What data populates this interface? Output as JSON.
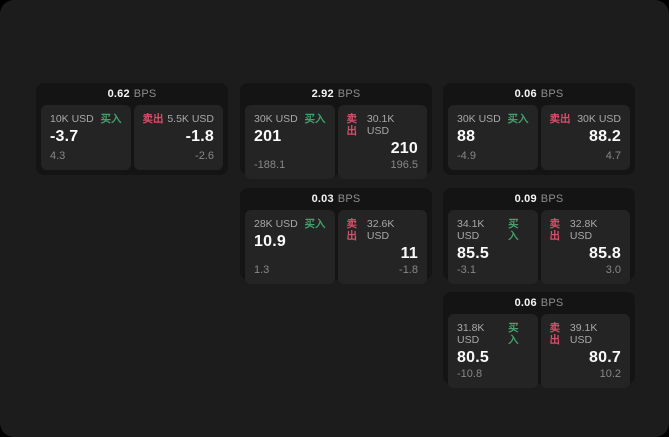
{
  "labels": {
    "buy": "买入",
    "sell": "卖出",
    "bps_unit": "BPS"
  },
  "colors": {
    "canvas-bg": "#1c1c1d",
    "card-bg": "#141414",
    "panel-bg": "#242425",
    "buy-color": "#42a06b",
    "sell-color": "#d5506a"
  },
  "cards": [
    {
      "bps": "0.62",
      "buy": {
        "amount": "10K USD",
        "price": "-3.7",
        "delta": "4.3"
      },
      "sell": {
        "amount": "5.5K USD",
        "price": "-1.8",
        "delta": "-2.6"
      }
    },
    {
      "bps": "2.92",
      "buy": {
        "amount": "30K USD",
        "price": "201",
        "delta": "-188.1"
      },
      "sell": {
        "amount": "30.1K USD",
        "price": "210",
        "delta": "196.5"
      }
    },
    {
      "bps": "0.06",
      "buy": {
        "amount": "30K USD",
        "price": "88",
        "delta": "-4.9"
      },
      "sell": {
        "amount": "30K USD",
        "price": "88.2",
        "delta": "4.7"
      }
    },
    {
      "bps": "0.03",
      "buy": {
        "amount": "28K USD",
        "price": "10.9",
        "delta": "1.3"
      },
      "sell": {
        "amount": "32.6K USD",
        "price": "11",
        "delta": "-1.8"
      }
    },
    {
      "bps": "0.09",
      "buy": {
        "amount": "34.1K USD",
        "price": "85.5",
        "delta": "-3.1"
      },
      "sell": {
        "amount": "32.8K USD",
        "price": "85.8",
        "delta": "3.0"
      }
    },
    {
      "bps": "0.06",
      "buy": {
        "amount": "31.8K USD",
        "price": "80.5",
        "delta": "-10.8"
      },
      "sell": {
        "amount": "39.1K USD",
        "price": "80.7",
        "delta": "10.2"
      }
    }
  ]
}
